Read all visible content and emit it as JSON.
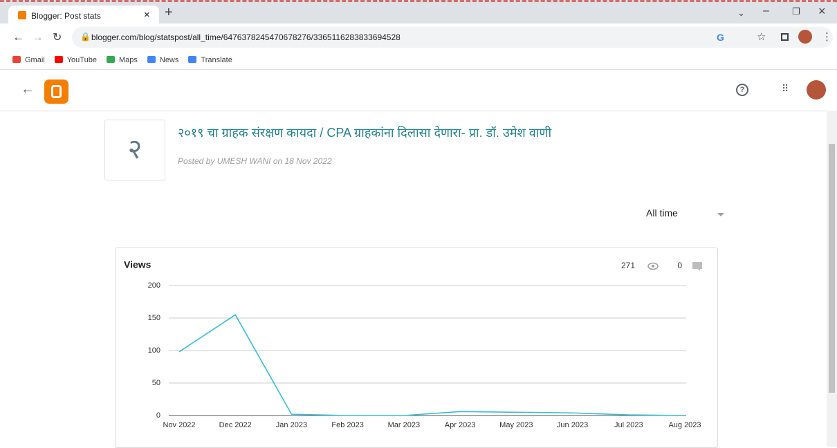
{
  "browser": {
    "tab_title": "Blogger: Post stats",
    "url": "blogger.com/blog/statspost/all_time/6476378245470678276/3365116283833694528",
    "bookmarks": [
      "Gmail",
      "YouTube",
      "Maps",
      "News",
      "Translate"
    ]
  },
  "post": {
    "thumbnail": "२",
    "title": "२०१९ चा ग्राहक संरक्षण कायदा / CPA ग्राहकांना दिलासा देणारा- प्रा. डॉ. उमेश वाणी",
    "byline": "Posted by UMESH WANI on 18 Nov 2022"
  },
  "range_selector": "All time",
  "chart_data": {
    "type": "line",
    "title": "Views",
    "total_views": 271,
    "total_comments": 0,
    "categories": [
      "Nov 2022",
      "Dec 2022",
      "Jan 2023",
      "Feb 2023",
      "Mar 2023",
      "Apr 2023",
      "May 2023",
      "Jun 2023",
      "Jul 2023",
      "Aug 2023"
    ],
    "series": [
      {
        "name": "Views",
        "color": "#33bfd6",
        "values": [
          98,
          155,
          2,
          0,
          0,
          6,
          5,
          4,
          1,
          0
        ]
      }
    ],
    "ylim": [
      0,
      200
    ],
    "yticks": [
      0,
      50,
      100,
      150,
      200
    ],
    "grid": true
  }
}
